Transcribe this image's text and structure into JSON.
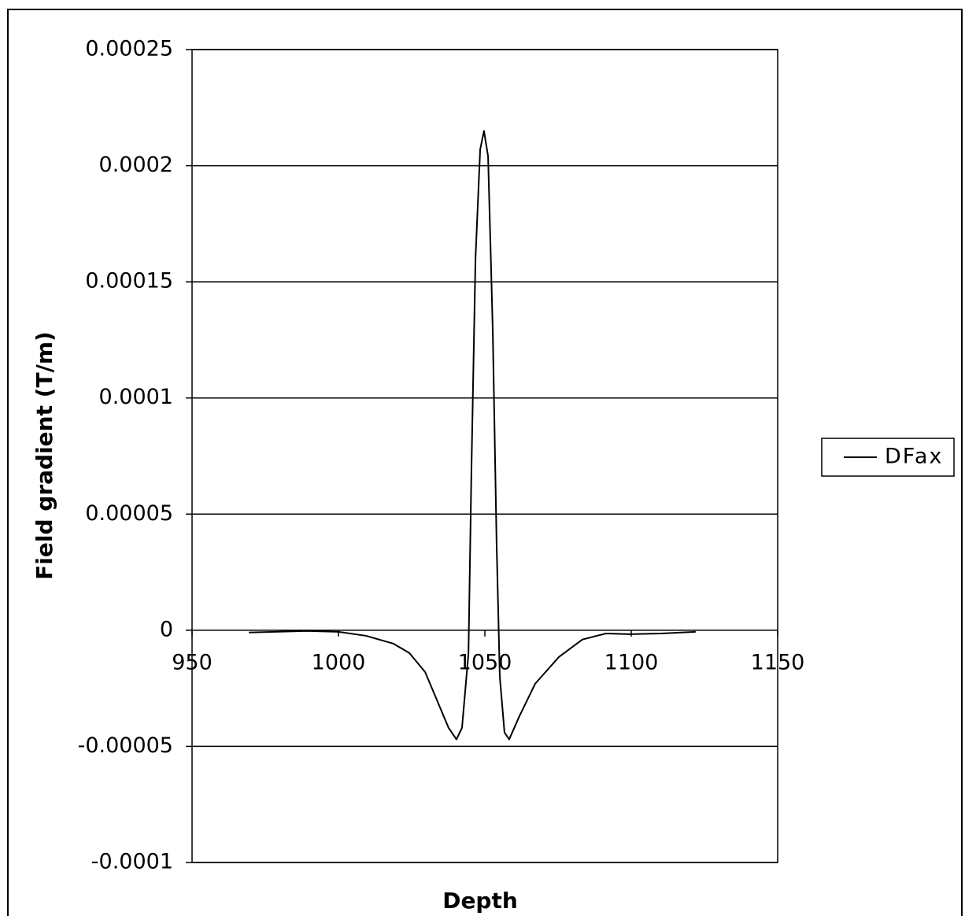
{
  "chart_data": {
    "type": "line",
    "x_label": "Depth",
    "y_label": "Field gradient (T/m)",
    "x": [
      969.4,
      989,
      1000,
      1009.4,
      1018.8,
      1024.2,
      1029.6,
      1033.6,
      1037.6,
      1040.3,
      1042.2,
      1044.4,
      1045.4,
      1046.8,
      1048.4,
      1049.7,
      1051.1,
      1052.7,
      1054,
      1055.1,
      1056.7,
      1058.3,
      1061.8,
      1067.2,
      1075.3,
      1083.3,
      1091.4,
      1099.5,
      1110.2,
      1122
    ],
    "series": [
      {
        "name": "DFax",
        "color": "#000000",
        "values": [
          -1e-06,
          -3e-07,
          -7e-07,
          -2.4e-06,
          -5.8e-06,
          -9.8e-06,
          -1.8e-05,
          -3e-05,
          -4.2e-05,
          -4.7e-05,
          -4.2e-05,
          -1e-05,
          6.8e-05,
          0.00016,
          0.000207,
          0.000215,
          0.000204,
          0.000129,
          3.8e-05,
          -2e-05,
          -4.4e-05,
          -4.7e-05,
          -3.7e-05,
          -2.3e-05,
          -1.15e-05,
          -4e-06,
          -1.4e-06,
          -1.7e-06,
          -1.4e-06,
          -7e-07
        ]
      }
    ],
    "xlim": [
      950,
      1150
    ],
    "xticks": [
      950,
      1000,
      1050,
      1100,
      1150
    ],
    "ylim": [
      -0.0001,
      0.00025
    ],
    "yticks": [
      -0.0001,
      -5e-05,
      0,
      5e-05,
      0.0001,
      0.00015,
      0.0002,
      0.00025
    ],
    "grid": true,
    "legend": "right"
  }
}
